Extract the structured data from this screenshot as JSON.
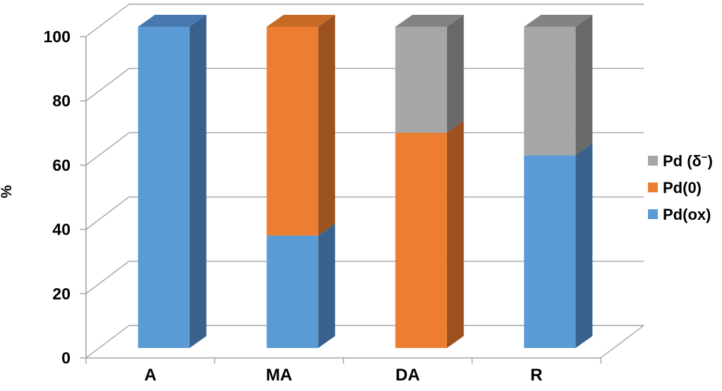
{
  "chart_data": {
    "type": "bar",
    "subtype": "3d-stacked-column",
    "title": "",
    "xlabel": "",
    "ylabel": "%",
    "ylim": [
      0,
      100
    ],
    "ytick_interval": 20,
    "ytick_labels": [
      "0",
      "20",
      "40",
      "60",
      "80",
      "100"
    ],
    "categories": [
      "A",
      "MA",
      "DA",
      "R"
    ],
    "series": [
      {
        "name": "Pd(ox)",
        "values": [
          100,
          35,
          0,
          60
        ],
        "color": "#5B9BD5",
        "color_top": "#4978AF",
        "color_side": "#38618D"
      },
      {
        "name": "Pd(0)",
        "values": [
          0,
          65,
          67,
          0
        ],
        "color": "#ED7D31",
        "color_top": "#C66A27",
        "color_side": "#9C511F"
      },
      {
        "name": "Pd (δ⁻)",
        "values": [
          0,
          0,
          33,
          40
        ],
        "color": "#A6A6A6",
        "color_top": "#838383",
        "color_side": "#696969"
      }
    ],
    "legend": {
      "position": "right",
      "items": [
        {
          "label_pre": "Pd (δ",
          "label_sup": "−",
          "label_post": ")",
          "color": "#A6A6A6"
        },
        {
          "label_pre": "Pd(0)",
          "label_sup": "",
          "label_post": "",
          "color": "#ED7D31"
        },
        {
          "label_pre": "Pd(ox)",
          "label_sup": "",
          "label_post": "",
          "color": "#5B9BD5"
        }
      ]
    },
    "grid": true,
    "gridline_color": "#A3A3A3",
    "text_color": "#000000",
    "background": "#FFFFFF"
  }
}
